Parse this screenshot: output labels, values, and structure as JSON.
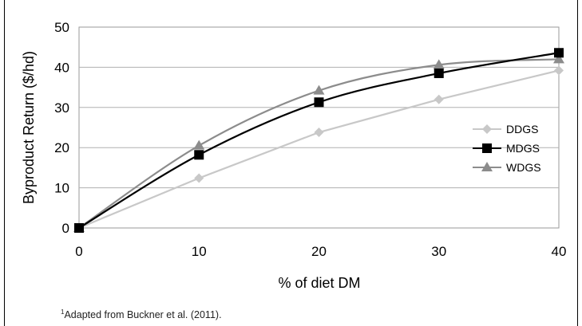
{
  "chart_data": {
    "type": "line",
    "xlabel": "% of diet DM",
    "ylabel": "Byproduct Return ($/hd)",
    "xlim": [
      0,
      40
    ],
    "ylim": [
      0,
      50
    ],
    "x_ticks": [
      "0",
      "10",
      "20",
      "30",
      "40"
    ],
    "y_ticks": [
      "0",
      "10",
      "20",
      "30",
      "40",
      "50"
    ],
    "grid": "horizontal",
    "legend_position": "right",
    "x": [
      0,
      10,
      20,
      30,
      40
    ],
    "series": [
      {
        "name": "DDGS",
        "values": [
          0,
          12.4,
          23.8,
          32.0,
          39.2
        ],
        "color": "#c8c8c8",
        "marker": "diamond"
      },
      {
        "name": "MDGS",
        "values": [
          0,
          18.2,
          31.3,
          38.5,
          43.6
        ],
        "color": "#000000",
        "marker": "square"
      },
      {
        "name": "WDGS",
        "values": [
          0,
          20.5,
          34.2,
          40.6,
          42.0
        ],
        "color": "#8c8c8c",
        "marker": "triangle"
      }
    ]
  },
  "footnote": {
    "marker": "1",
    "text": "Adapted from Buckner et al. (2011)."
  }
}
